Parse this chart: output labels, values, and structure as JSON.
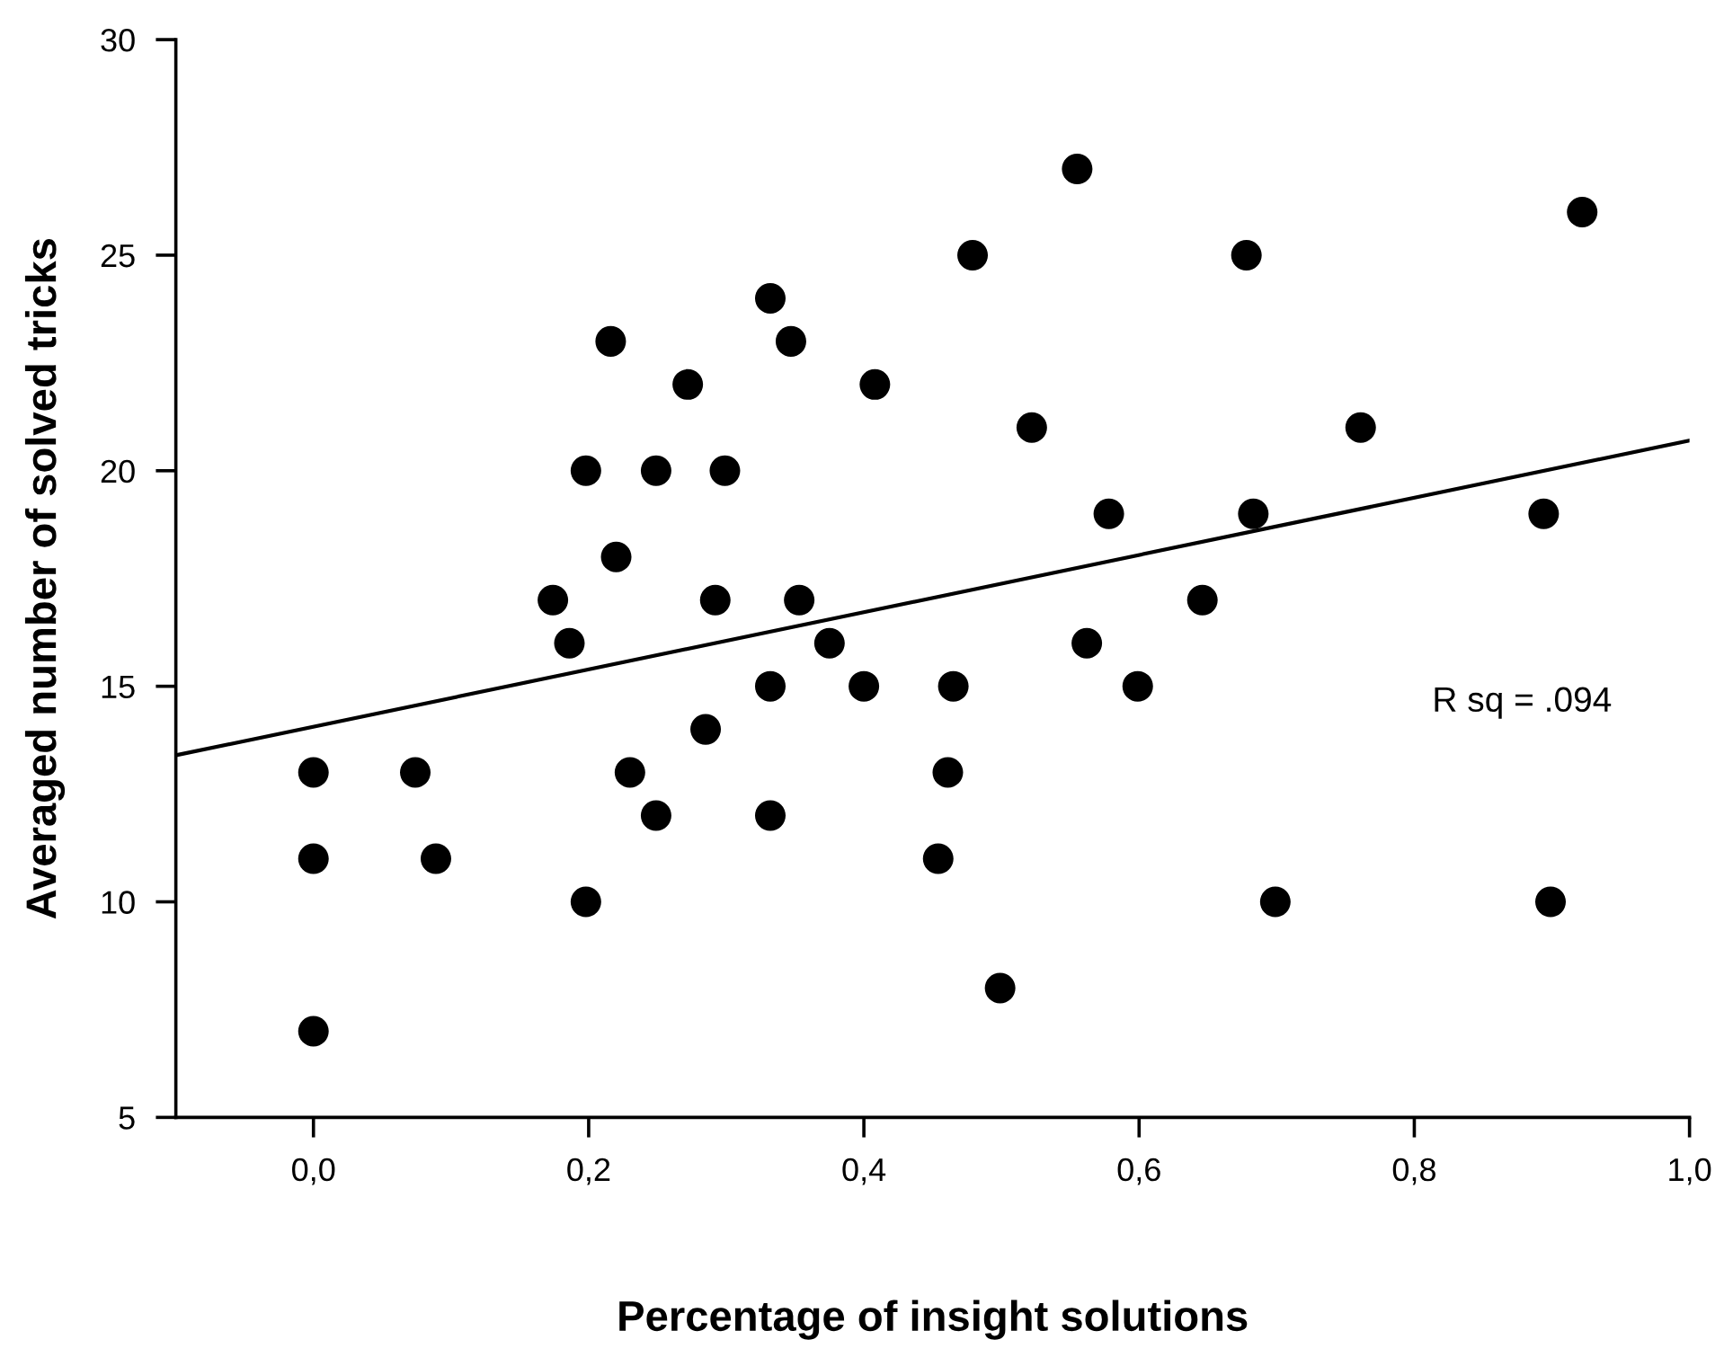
{
  "chart_data": {
    "type": "scatter",
    "xlabel": "Percentage of insight solutions",
    "ylabel": "Averaged number of solved tricks",
    "xlim": [
      -0.1,
      1.0
    ],
    "ylim": [
      5,
      30
    ],
    "xticks": [
      {
        "value": 0.0,
        "label": "0,0"
      },
      {
        "value": 0.2,
        "label": "0,2"
      },
      {
        "value": 0.4,
        "label": "0,4"
      },
      {
        "value": 0.6,
        "label": "0,6"
      },
      {
        "value": 0.8,
        "label": "0,8"
      },
      {
        "value": 1.0,
        "label": "1,0"
      }
    ],
    "yticks": [
      5,
      10,
      15,
      20,
      25,
      30
    ],
    "grid": false,
    "marker": "circle",
    "annotations": [
      "R sq = .094"
    ],
    "series": [
      {
        "color": "#000000",
        "x": [
          0.0,
          0.0,
          0.0,
          0.074,
          0.089,
          0.174,
          0.186,
          0.198,
          0.198,
          0.216,
          0.22,
          0.23,
          0.249,
          0.249,
          0.272,
          0.285,
          0.292,
          0.299,
          0.332,
          0.332,
          0.332,
          0.347,
          0.353,
          0.375,
          0.408,
          0.4,
          0.461,
          0.454,
          0.465,
          0.479,
          0.555,
          0.678,
          0.922,
          0.522,
          0.761,
          0.578,
          0.683,
          0.894,
          0.646,
          0.562,
          0.599,
          0.699,
          0.899,
          0.499
        ],
        "values": [
          13,
          11,
          7,
          13,
          11,
          17,
          16,
          20,
          10,
          23,
          18,
          13,
          20,
          12,
          22,
          14,
          17,
          20,
          24,
          15,
          12,
          23,
          17,
          16,
          22,
          15,
          13,
          11,
          15,
          25,
          27,
          25,
          26,
          21,
          21,
          19,
          19,
          19,
          17,
          16,
          15,
          10,
          10,
          8
        ]
      },
      {
        "type": "line",
        "color": "#000000",
        "marker": "none",
        "line_style": "solid",
        "x": [
          -0.1,
          1.0
        ],
        "values": [
          13.4,
          20.7
        ]
      }
    ]
  }
}
